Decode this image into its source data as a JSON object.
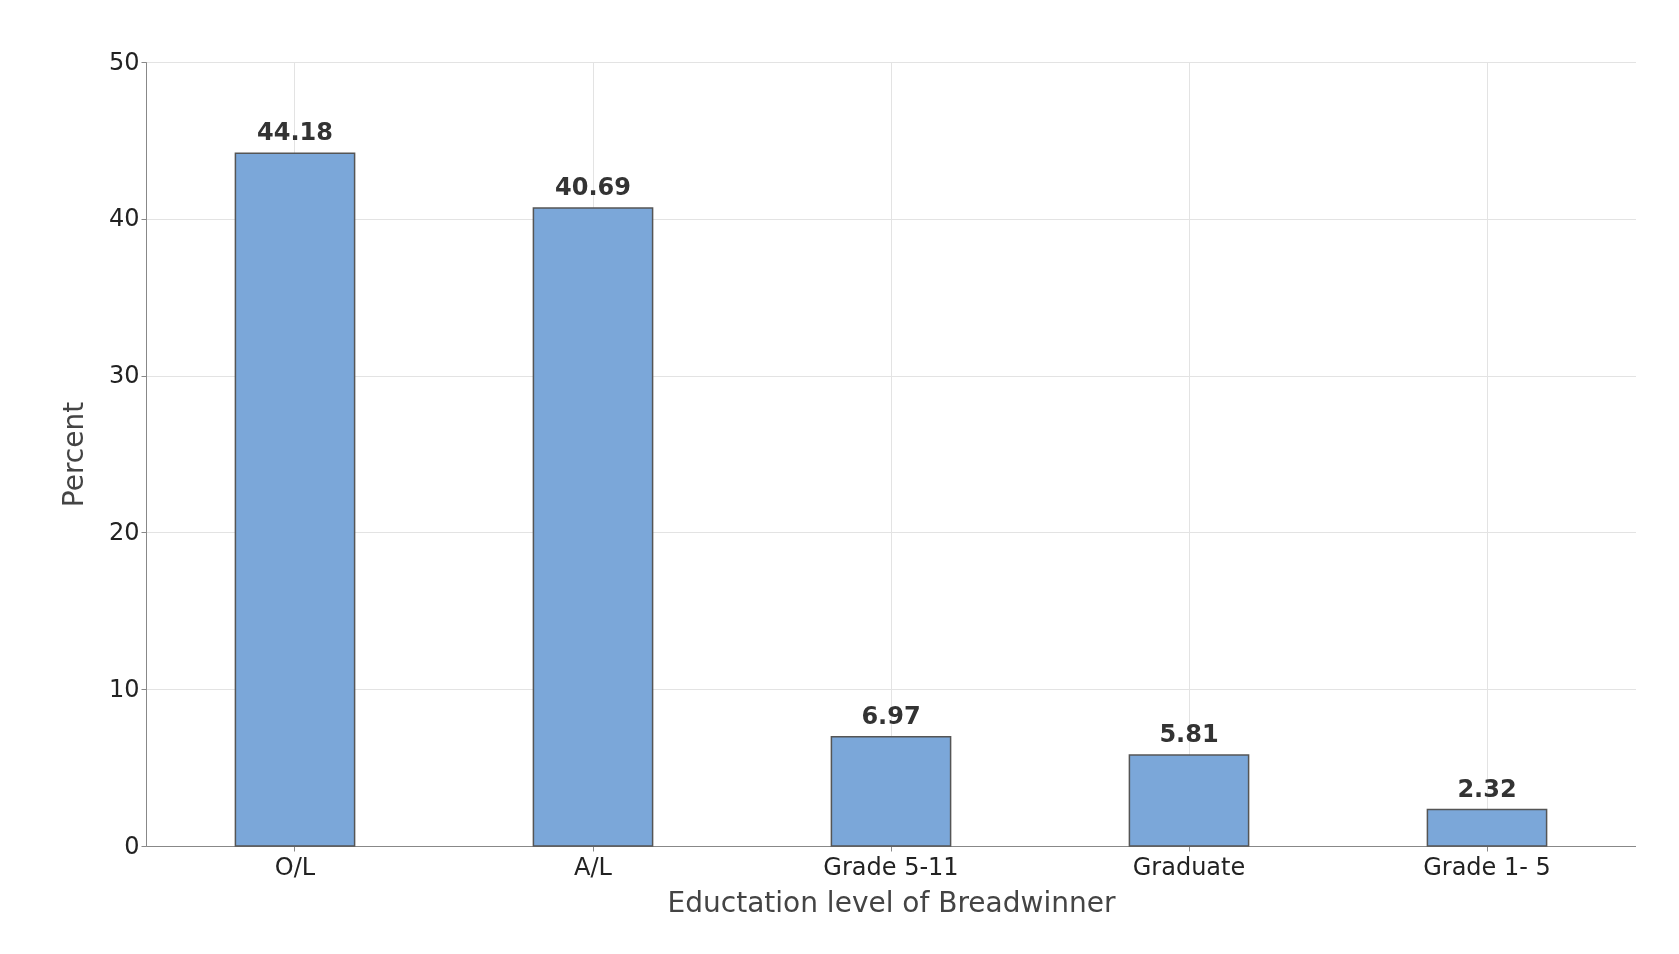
{
  "chart_data": {
    "type": "bar",
    "xlabel": "Eductation level of Breadwinner",
    "ylabel": "Percent",
    "categories": [
      "O/L",
      "A/L",
      "Grade 5-11",
      "Graduate",
      "Grade 1- 5"
    ],
    "values": [
      44.18,
      40.69,
      6.97,
      5.81,
      2.32
    ],
    "color": "#7ba7d9",
    "ylim": [
      0,
      50
    ],
    "yticks": [
      0,
      10,
      20,
      30,
      40,
      50
    ],
    "grid": true,
    "data_labels": true
  }
}
